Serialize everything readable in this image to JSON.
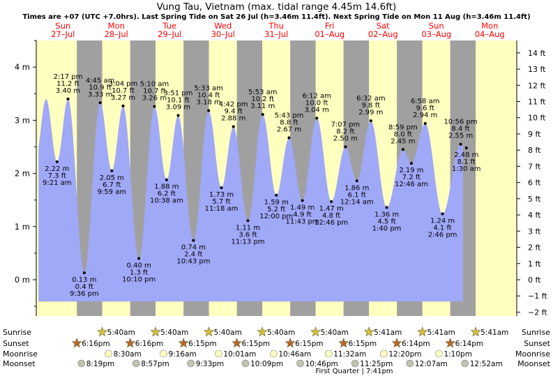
{
  "title": "Vung Tau, Vietnam (max. tidal range 4.45m 14.6ft)",
  "subtitle": "Times are +07 (UTC +7.0hrs). Last Spring Tide on Sat 26 Jul (h=3.46m 11.4ft). Next Spring Tide on Mon 11 Aug (h=3.46m 11.4ft)",
  "colors": {
    "day": "#ffffc0",
    "night": "#a0a0a0",
    "water": "#a0a8f8",
    "day_label": "#ff0000",
    "sun": "#d4c23a",
    "sunset": "#b46a2c",
    "moonrise": "#ffffc0",
    "moonset": "#c0c4b0"
  },
  "chart_data": {
    "type": "area",
    "title": "Vung Tau, Vietnam (max. tidal range 4.45m 14.6ft)",
    "y_left_label": "m",
    "y_right_label": "ft",
    "y_left_range_m": [
      -0.45,
      4.5
    ],
    "y_left_ticks": [
      {
        "v": 0,
        "label": "0 m"
      },
      {
        "v": 1,
        "label": "1 m"
      },
      {
        "v": 2,
        "label": "2 m"
      },
      {
        "v": 3,
        "label": "3 m"
      },
      {
        "v": 4,
        "label": "4 m"
      }
    ],
    "y_right_ticks": [
      {
        "v": -2,
        "label": "−2 ft"
      },
      {
        "v": -1,
        "label": "−1 ft"
      },
      {
        "v": 0,
        "label": "0 ft"
      },
      {
        "v": 1,
        "label": "1 ft"
      },
      {
        "v": 2,
        "label": "2 ft"
      },
      {
        "v": 3,
        "label": "3 ft"
      },
      {
        "v": 4,
        "label": "4 ft"
      },
      {
        "v": 5,
        "label": "5 ft"
      },
      {
        "v": 6,
        "label": "6 ft"
      },
      {
        "v": 7,
        "label": "7 ft"
      },
      {
        "v": 8,
        "label": "8 ft"
      },
      {
        "v": 9,
        "label": "9 ft"
      },
      {
        "v": 10,
        "label": "10 ft"
      },
      {
        "v": 11,
        "label": "11 ft"
      },
      {
        "v": 12,
        "label": "12 ft"
      },
      {
        "v": 13,
        "label": "13 ft"
      },
      {
        "v": 14,
        "label": "14 ft"
      }
    ],
    "days": [
      {
        "dow": "Sun",
        "date": "27–Jul",
        "day": 0
      },
      {
        "dow": "Mon",
        "date": "28–Jul",
        "day": 1
      },
      {
        "dow": "Tue",
        "date": "29–Jul",
        "day": 2
      },
      {
        "dow": "Wed",
        "date": "30–Jul",
        "day": 3
      },
      {
        "dow": "Thu",
        "date": "31–Jul",
        "day": 4
      },
      {
        "dow": "Fri",
        "date": "01–Aug",
        "day": 5
      },
      {
        "dow": "Sat",
        "date": "02–Aug",
        "day": 6
      },
      {
        "dow": "Sun",
        "date": "03–Aug",
        "day": 7
      },
      {
        "dow": "Mon",
        "date": "04–Aug",
        "day": 8
      }
    ],
    "series_start": {
      "day": 0,
      "time": "01:00"
    },
    "series_end": {
      "day": 8,
      "time": "00:00"
    },
    "tides": [
      {
        "day": 0,
        "time": "09:21",
        "m": 2.22,
        "labels": [
          "2.22 m",
          "7.3 ft",
          "9:21 am"
        ],
        "type": "low"
      },
      {
        "day": 0,
        "time": "14:17",
        "m": 3.4,
        "labels": [
          "2:17 pm",
          "11.2 ft",
          "3.40 m"
        ],
        "type": "high"
      },
      {
        "day": 0,
        "time": "21:36",
        "m": 0.13,
        "labels": [
          "0.13 m",
          "0.4 ft",
          "9:36 pm"
        ],
        "type": "low"
      },
      {
        "day": 1,
        "time": "04:45",
        "m": 3.33,
        "labels": [
          "4:45 am",
          "10.9 ft",
          "3.33 m"
        ],
        "type": "high"
      },
      {
        "day": 1,
        "time": "09:59",
        "m": 2.05,
        "labels": [
          "2.05 m",
          "6.7 ft",
          "9:59 am"
        ],
        "type": "low"
      },
      {
        "day": 1,
        "time": "15:04",
        "m": 3.27,
        "labels": [
          "3:04 pm",
          "10.7 ft",
          "3.27 m"
        ],
        "type": "high"
      },
      {
        "day": 1,
        "time": "22:10",
        "m": 0.4,
        "labels": [
          "0.40 m",
          "1.3 ft",
          "10:10 pm"
        ],
        "type": "low"
      },
      {
        "day": 2,
        "time": "05:10",
        "m": 3.26,
        "labels": [
          "5:10 am",
          "10.7 ft",
          "3.26 m"
        ],
        "type": "high"
      },
      {
        "day": 2,
        "time": "10:38",
        "m": 1.88,
        "labels": [
          "1.88 m",
          "6.2 ft",
          "10:38 am"
        ],
        "type": "low"
      },
      {
        "day": 2,
        "time": "15:51",
        "m": 3.09,
        "labels": [
          "3:51 pm",
          "10.1 ft",
          "3.09 m"
        ],
        "type": "high"
      },
      {
        "day": 2,
        "time": "22:43",
        "m": 0.74,
        "labels": [
          "0.74 m",
          "2.4 ft",
          "10:43 pm"
        ],
        "type": "low"
      },
      {
        "day": 3,
        "time": "05:33",
        "m": 3.18,
        "labels": [
          "5:33 am",
          "10.4 ft",
          "3.18 m"
        ],
        "type": "high"
      },
      {
        "day": 3,
        "time": "11:18",
        "m": 1.73,
        "labels": [
          "1.73 m",
          "5.7 ft",
          "11:18 am"
        ],
        "type": "low"
      },
      {
        "day": 3,
        "time": "16:42",
        "m": 2.88,
        "labels": [
          "4:42 pm",
          "9.4 ft",
          "2.88 m"
        ],
        "type": "high"
      },
      {
        "day": 3,
        "time": "23:13",
        "m": 1.11,
        "labels": [
          "1.11 m",
          "3.6 ft",
          "11:13 pm"
        ],
        "type": "low"
      },
      {
        "day": 4,
        "time": "05:53",
        "m": 3.11,
        "labels": [
          "5:53 am",
          "10.2 ft",
          "3.11 m"
        ],
        "type": "high"
      },
      {
        "day": 4,
        "time": "12:00",
        "m": 1.59,
        "labels": [
          "1.59 m",
          "5.2 ft",
          "12:00 pm"
        ],
        "type": "low"
      },
      {
        "day": 4,
        "time": "17:43",
        "m": 2.67,
        "labels": [
          "5:43 pm",
          "8.8 ft",
          "2.67 m"
        ],
        "type": "high"
      },
      {
        "day": 4,
        "time": "23:43",
        "m": 1.49,
        "labels": [
          "1.49 m",
          "4.9 ft",
          "11:43 pm"
        ],
        "type": "low"
      },
      {
        "day": 5,
        "time": "06:12",
        "m": 3.04,
        "labels": [
          "6:12 am",
          "10.0 ft",
          "3.04 m"
        ],
        "type": "high"
      },
      {
        "day": 5,
        "time": "12:46",
        "m": 1.47,
        "labels": [
          "1.47 m",
          "4.8 ft",
          "12:46 pm"
        ],
        "type": "low"
      },
      {
        "day": 5,
        "time": "19:07",
        "m": 2.5,
        "labels": [
          "7:07 pm",
          "8.2 ft",
          "2.50 m"
        ],
        "type": "high"
      },
      {
        "day": 6,
        "time": "00:14",
        "m": 1.86,
        "labels": [
          "1.86 m",
          "6.1 ft",
          "12:14 am"
        ],
        "type": "low"
      },
      {
        "day": 6,
        "time": "06:32",
        "m": 2.99,
        "labels": [
          "6:32 am",
          "9.8 ft",
          "2.99 m"
        ],
        "type": "high"
      },
      {
        "day": 6,
        "time": "13:40",
        "m": 1.36,
        "labels": [
          "1.36 m",
          "4.5 ft",
          "1:40 pm"
        ],
        "type": "low"
      },
      {
        "day": 6,
        "time": "20:59",
        "m": 2.45,
        "labels": [
          "8:59 pm",
          "8.0 ft",
          "2.45 m"
        ],
        "type": "high"
      },
      {
        "day": 7,
        "time": "00:46",
        "m": 2.19,
        "labels": [
          "2.19 m",
          "7.2 ft",
          "12:46 am"
        ],
        "type": "low"
      },
      {
        "day": 7,
        "time": "06:58",
        "m": 2.94,
        "labels": [
          "6:58 am",
          "9.6 ft",
          "2.94 m"
        ],
        "type": "high"
      },
      {
        "day": 7,
        "time": "14:46",
        "m": 1.24,
        "labels": [
          "1.24 m",
          "4.1 ft",
          "2:46 pm"
        ],
        "type": "low"
      },
      {
        "day": 7,
        "time": "22:56",
        "m": 2.55,
        "labels": [
          "10:56 pm",
          "8.4 ft",
          "2.55 m"
        ],
        "type": "high"
      },
      {
        "day": 8,
        "time": "01:30",
        "m": 2.48,
        "labels": [
          "2.48 m",
          "8.1 ft",
          "1:30 am"
        ],
        "type": "low"
      }
    ],
    "sunrise": [
      {
        "day": 1,
        "time": "05:40",
        "label": "5:40am"
      },
      {
        "day": 2,
        "time": "05:40",
        "label": "5:40am"
      },
      {
        "day": 3,
        "time": "05:40",
        "label": "5:40am"
      },
      {
        "day": 4,
        "time": "05:40",
        "label": "5:40am"
      },
      {
        "day": 5,
        "time": "05:40",
        "label": "5:40am"
      },
      {
        "day": 6,
        "time": "05:41",
        "label": "5:41am"
      },
      {
        "day": 7,
        "time": "05:41",
        "label": "5:41am"
      },
      {
        "day": 8,
        "time": "05:41",
        "label": "5:41am"
      }
    ],
    "sunset": [
      {
        "day": 0,
        "time": "18:16",
        "label": "6:16pm"
      },
      {
        "day": 1,
        "time": "18:16",
        "label": "6:16pm"
      },
      {
        "day": 2,
        "time": "18:15",
        "label": "6:15pm"
      },
      {
        "day": 3,
        "time": "18:15",
        "label": "6:15pm"
      },
      {
        "day": 4,
        "time": "18:15",
        "label": "6:15pm"
      },
      {
        "day": 5,
        "time": "18:15",
        "label": "6:15pm"
      },
      {
        "day": 6,
        "time": "18:14",
        "label": "6:14pm"
      },
      {
        "day": 7,
        "time": "18:14",
        "label": "6:14pm"
      }
    ],
    "moonrise": [
      {
        "day": 1,
        "time": "08:30",
        "label": "8:30am"
      },
      {
        "day": 2,
        "time": "09:16",
        "label": "9:16am"
      },
      {
        "day": 3,
        "time": "10:01",
        "label": "10:01am"
      },
      {
        "day": 4,
        "time": "10:46",
        "label": "10:46am"
      },
      {
        "day": 5,
        "time": "11:32",
        "label": "11:32am"
      },
      {
        "day": 6,
        "time": "12:20",
        "label": "12:20pm"
      },
      {
        "day": 7,
        "time": "13:10",
        "label": "1:10pm"
      }
    ],
    "moonset": [
      {
        "day": 0,
        "time": "20:19",
        "label": "8:19pm"
      },
      {
        "day": 1,
        "time": "20:57",
        "label": "8:57pm"
      },
      {
        "day": 2,
        "time": "21:33",
        "label": "9:33pm"
      },
      {
        "day": 3,
        "time": "22:09",
        "label": "10:09pm"
      },
      {
        "day": 4,
        "time": "22:46",
        "label": "10:46pm"
      },
      {
        "day": 5,
        "time": "23:25",
        "label": "11:25pm"
      },
      {
        "day": 7,
        "time": "00:07",
        "label": "12:07am"
      },
      {
        "day": 8,
        "time": "00:52",
        "label": "12:52am"
      }
    ],
    "row_labels": [
      "Sunrise",
      "Sunset",
      "Moonrise",
      "Moonset"
    ],
    "moon_phase": "First Quarter | 7:41pm"
  }
}
